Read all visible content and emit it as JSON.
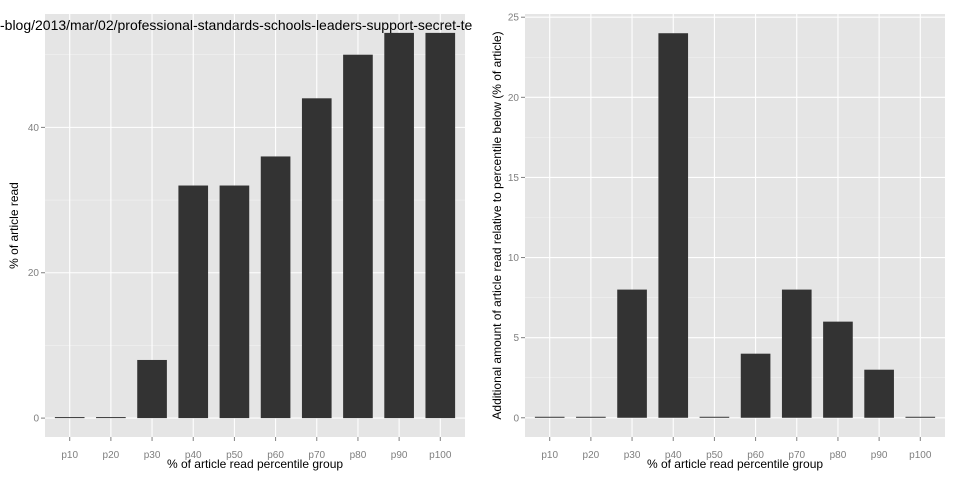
{
  "chart_data": [
    {
      "type": "bar",
      "title": "-blog/2013/mar/02/professional-standards-schools-leaders-support-secret-te",
      "xlabel": "% of article read percentile group",
      "ylabel": "% of article read",
      "categories": [
        "p10",
        "p20",
        "p30",
        "p40",
        "p50",
        "p60",
        "p70",
        "p80",
        "p90",
        "p100"
      ],
      "values": [
        0,
        0,
        8,
        32,
        32,
        36,
        44,
        50,
        53,
        53
      ],
      "ylim": [
        -2.6,
        55.6
      ],
      "yticks": [
        0,
        20,
        40
      ],
      "grid": true,
      "bar_color": "#333333",
      "panel_color": "#e5e5e5"
    },
    {
      "type": "bar",
      "title": "",
      "xlabel": "% of article read percentile group",
      "ylabel": "Additional amount of article read relative to percentile below (% of article)",
      "categories": [
        "p10",
        "p20",
        "p30",
        "p40",
        "p50",
        "p60",
        "p70",
        "p80",
        "p90",
        "p100"
      ],
      "values": [
        0,
        0,
        8,
        24,
        0,
        4,
        8,
        6,
        3,
        0
      ],
      "ylim": [
        -1.2,
        25.2
      ],
      "yticks": [
        0,
        5,
        10,
        15,
        20,
        25
      ],
      "grid": true,
      "bar_color": "#333333",
      "panel_color": "#e5e5e5"
    }
  ]
}
